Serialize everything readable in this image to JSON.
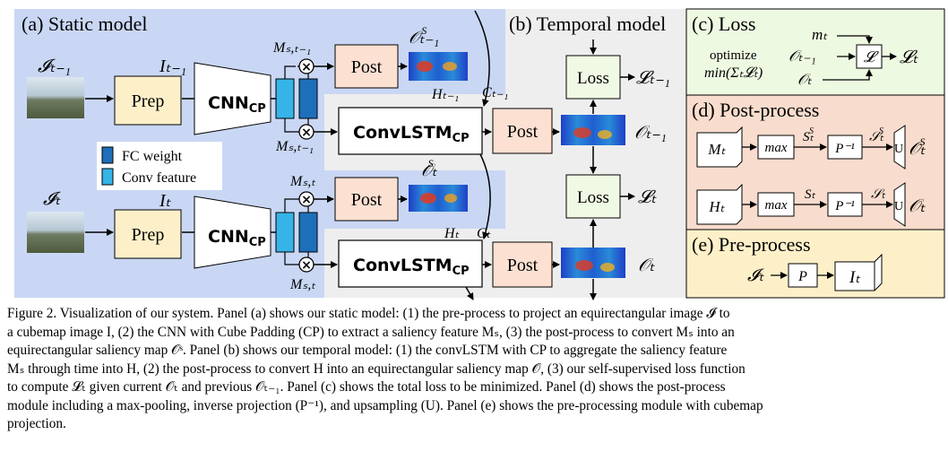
{
  "panels": {
    "a_title": "(a) Static model",
    "b_title": "(b) Temporal model",
    "c_title": "(c) Loss",
    "d_title": "(d) Post-process",
    "e_title": "(e) Pre-process"
  },
  "static": {
    "input_prev": "𝓘ₜ₋₁",
    "input_curr": "𝓘ₜ",
    "prep_label": "Prep",
    "cube_prev": "Iₜ₋₁",
    "cube_curr": "Iₜ",
    "cnn_main": "CNN",
    "cnn_sub": "CP",
    "ms_prev": "Mₛ,ₜ₋₁",
    "ms_curr": "Mₛ,ₜ",
    "mult": "×",
    "post_label": "Post",
    "os_prev": "𝒪ₜ₋₁",
    "os_sup": "S",
    "os_curr": "𝒪ₜ",
    "legend_fc": "FC weight",
    "legend_conv": "Conv feature"
  },
  "temporal": {
    "convlstm_main": "ConvLSTM",
    "convlstm_sub": "CP",
    "h_prev": "Hₜ₋₁",
    "c_prev": "Cₜ₋₁",
    "h_curr": "Hₜ",
    "c_curr": "Cₜ",
    "post_label": "Post",
    "out_prev": "𝒪ₜ₋₁",
    "out_curr": "𝒪ₜ",
    "loss_label": "Loss",
    "loss_prev": "𝓛ₜ₋₁",
    "loss_curr": "𝓛ₜ"
  },
  "loss_panel": {
    "optimize": "optimize",
    "min_expr": "min(Σₜ𝓛ₜ)",
    "m_t": "mₜ",
    "o_prev": "𝒪ₜ₋₁",
    "o_t": "𝒪ₜ",
    "l_box": "𝓛",
    "l_out": "𝓛ₜ"
  },
  "post_panel": {
    "m_t": "Mₜ",
    "h_t": "Hₜ",
    "max": "max",
    "s_t_s": "Sₜ",
    "s_sup": "S",
    "s_t": "Sₜ",
    "p_inv": "P⁻¹",
    "cal_s_s": "𝒮ₜ",
    "cal_s": "𝒮ₜ",
    "u": "U",
    "o_s": "𝒪ₜ",
    "o_t": "𝒪ₜ"
  },
  "pre_panel": {
    "i_cal": "𝓘ₜ",
    "p": "P",
    "i_t": "Iₜ"
  },
  "caption": [
    "Figure 2. Visualization of our system. Panel (a) shows our static model: (1) the pre-process to project an equirectangular image 𝓘 to",
    "a cubemap image I, (2) the CNN with Cube Padding (CP) to extract a saliency feature Mₛ, (3) the post-process to convert Mₛ into an",
    "equirectangular saliency map 𝒪ˢ. Panel (b) shows our temporal model: (1) the convLSTM with CP to aggregate the saliency feature",
    "Mₛ through time into H, (2) the post-process to convert H into an equirectangular saliency map 𝒪, (3) our self-supervised loss function",
    "to compute 𝓛ₜ given current 𝒪ₜ and previous 𝒪ₜ₋₁. Panel (c) shows the total loss to be minimized. Panel (d) shows the post-process",
    "module including a max-pooling, inverse projection (P⁻¹), and upsampling (U). Panel (e) shows the pre-processing module with cubemap",
    "projection."
  ]
}
